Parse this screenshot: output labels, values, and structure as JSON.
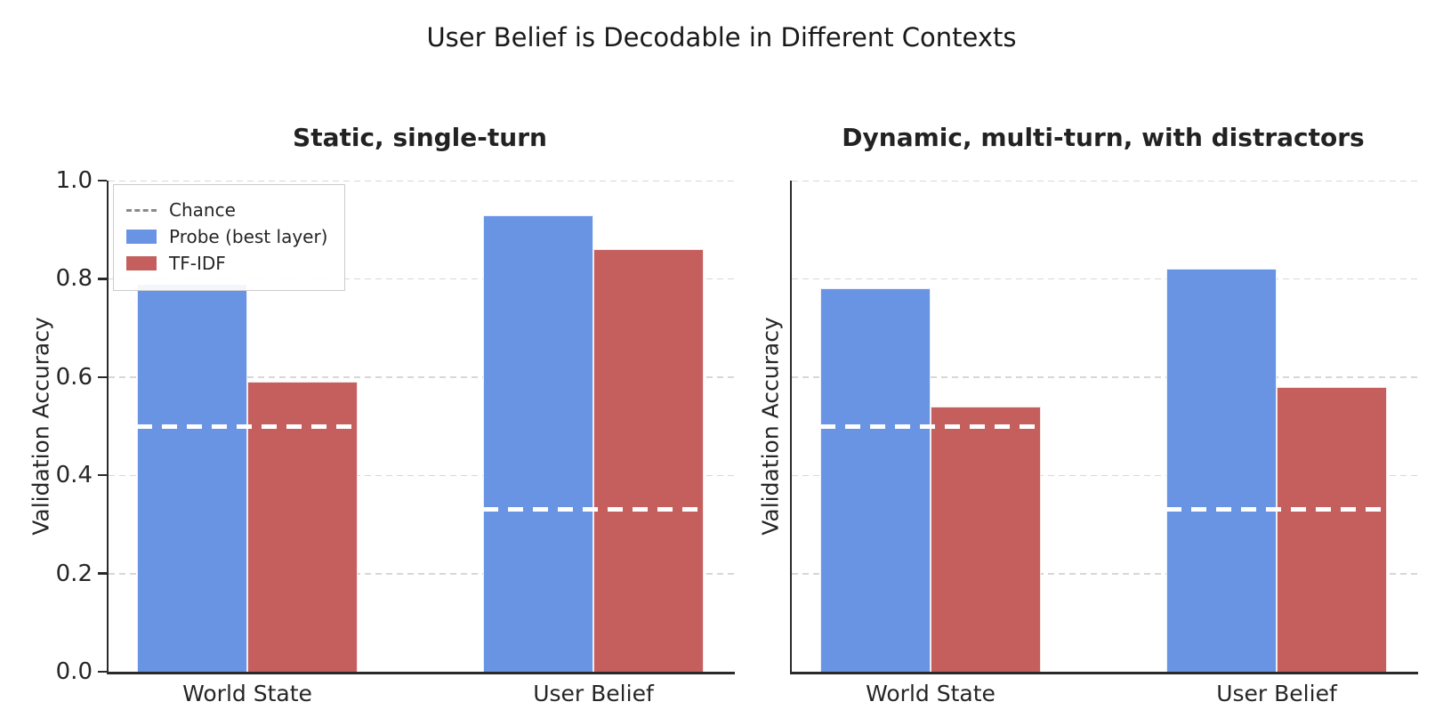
{
  "figure": {
    "title": "User Belief is Decodable in Different Contexts"
  },
  "legend": {
    "items": [
      {
        "label": "Chance",
        "swatch": "dashed-line",
        "color": "#8a8a8a"
      },
      {
        "label": "Probe (best layer)",
        "swatch": "rect",
        "color": "#6994E4"
      },
      {
        "label": "TF-IDF",
        "swatch": "rect",
        "color": "#C45F5E"
      }
    ]
  },
  "chart_data": [
    {
      "type": "bar",
      "title": "Static, single-turn",
      "categories": [
        "World State",
        "User Belief"
      ],
      "series": [
        {
          "name": "Probe (best layer)",
          "color": "#6994E4",
          "values": [
            0.79,
            0.93
          ]
        },
        {
          "name": "TF-IDF",
          "color": "#C45F5E",
          "values": [
            0.59,
            0.86
          ]
        }
      ],
      "chance_lines": [
        {
          "category": "World State",
          "value": 0.5
        },
        {
          "category": "User Belief",
          "value": 0.33
        }
      ],
      "chance_color": "#ffffff",
      "ylabel": "Validation Accuracy",
      "yticks": [
        "0.0",
        "0.2",
        "0.4",
        "0.6",
        "0.8",
        "1.0"
      ],
      "ylim": [
        0.0,
        1.0
      ],
      "grid": true,
      "show_ytick_labels": true,
      "legend_position": "upper left"
    },
    {
      "type": "bar",
      "title": "Dynamic, multi-turn, with distractors",
      "categories": [
        "World State",
        "User Belief"
      ],
      "series": [
        {
          "name": "Probe (best layer)",
          "color": "#6994E4",
          "values": [
            0.78,
            0.82
          ]
        },
        {
          "name": "TF-IDF",
          "color": "#C45F5E",
          "values": [
            0.54,
            0.58
          ]
        }
      ],
      "chance_lines": [
        {
          "category": "World State",
          "value": 0.5
        },
        {
          "category": "User Belief",
          "value": 0.33
        }
      ],
      "chance_color": "#ffffff",
      "ylabel": "Validation Accuracy",
      "yticks": [
        "0.0",
        "0.2",
        "0.4",
        "0.6",
        "0.8",
        "1.0"
      ],
      "ylim": [
        0.0,
        1.0
      ],
      "grid": true,
      "show_ytick_labels": false,
      "legend_position": "none"
    }
  ]
}
